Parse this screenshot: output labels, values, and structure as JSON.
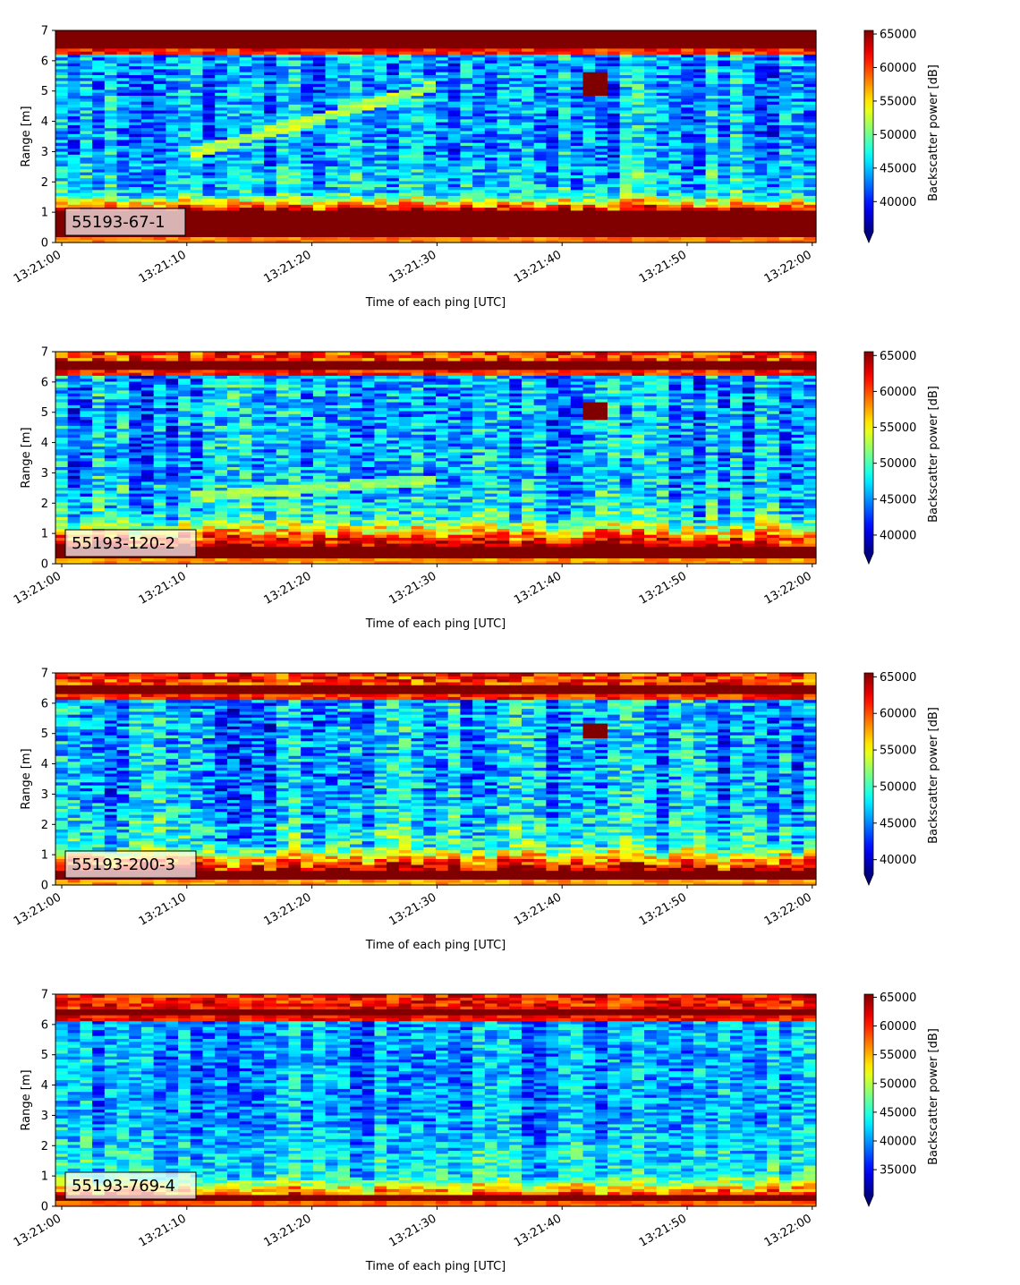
{
  "chart_data": [
    {
      "type": "heatmap",
      "panel_label": "55193-67-1",
      "xlabel": "Time of each ping [UTC]",
      "ylabel": "Range [m]",
      "xticks": [
        "13:21:00",
        "13:21:10",
        "13:21:20",
        "13:21:30",
        "13:21:40",
        "13:21:50",
        "13:22:00"
      ],
      "yticks": [
        "0",
        "1",
        "2",
        "3",
        "4",
        "5",
        "6",
        "7"
      ],
      "xlim_seconds": [
        -0.5,
        60.3
      ],
      "ylim": [
        0,
        7
      ],
      "colorbar_label": "Backscatter power [dB]",
      "colorbar_range": [
        35500,
        65535
      ],
      "colorbar_ticks": [
        "40000",
        "45000",
        "50000",
        "55000",
        "60000",
        "65000"
      ],
      "colormap": "jet",
      "features": {
        "surface_band_m": [
          6.4,
          7.0
        ],
        "near_field_band_m": [
          0.2,
          1.1
        ],
        "near_field_gradient_top_m": 1.6,
        "background_level": 44000,
        "target_track": {
          "t_start": 10,
          "r_start": 2.9,
          "t_end": 30,
          "r_end": 5.2
        },
        "anomaly": {
          "t_start": 41.5,
          "t_end": 44.0,
          "r_low": 4.9,
          "r_high": 5.6
        }
      }
    },
    {
      "type": "heatmap",
      "panel_label": "55193-120-2",
      "xlabel": "Time of each ping [UTC]",
      "ylabel": "Range [m]",
      "xticks": [
        "13:21:00",
        "13:21:10",
        "13:21:20",
        "13:21:30",
        "13:21:40",
        "13:21:50",
        "13:22:00"
      ],
      "yticks": [
        "0",
        "1",
        "2",
        "3",
        "4",
        "5",
        "6",
        "7"
      ],
      "xlim_seconds": [
        -0.5,
        60.3
      ],
      "ylim": [
        0,
        7
      ],
      "colorbar_label": "Backscatter power [dB]",
      "colorbar_range": [
        37500,
        65535
      ],
      "colorbar_ticks": [
        "40000",
        "45000",
        "50000",
        "55000",
        "60000",
        "65000"
      ],
      "colormap": "jet",
      "features": {
        "surface_band_m": [
          6.4,
          6.7
        ],
        "near_field_band_m": [
          0.2,
          0.55
        ],
        "near_field_gradient_top_m": 1.5,
        "background_level": 45500,
        "target_track": {
          "t_start": 10,
          "r_start": 2.2,
          "t_end": 30,
          "r_end": 2.8
        },
        "anomaly": {
          "t_start": 41.5,
          "t_end": 43.5,
          "r_low": 4.8,
          "r_high": 5.3
        }
      }
    },
    {
      "type": "heatmap",
      "panel_label": "55193-200-3",
      "xlabel": "Time of each ping [UTC]",
      "ylabel": "Range [m]",
      "xticks": [
        "13:21:00",
        "13:21:10",
        "13:21:20",
        "13:21:30",
        "13:21:40",
        "13:21:50",
        "13:22:00"
      ],
      "yticks": [
        "0",
        "1",
        "2",
        "3",
        "4",
        "5",
        "6",
        "7"
      ],
      "xlim_seconds": [
        -0.5,
        60.3
      ],
      "ylim": [
        0,
        7
      ],
      "colorbar_label": "Backscatter power [dB]",
      "colorbar_range": [
        38000,
        65535
      ],
      "colorbar_ticks": [
        "40000",
        "45000",
        "50000",
        "55000",
        "60000",
        "65000"
      ],
      "colormap": "jet",
      "features": {
        "surface_band_m": [
          6.35,
          6.65
        ],
        "near_field_band_m": [
          0.2,
          0.45
        ],
        "near_field_gradient_top_m": 1.3,
        "background_level": 45500,
        "target_track": null,
        "anomaly": {
          "t_start": 41.5,
          "t_end": 43.5,
          "r_low": 4.9,
          "r_high": 5.3
        }
      }
    },
    {
      "type": "heatmap",
      "panel_label": "55193-769-4",
      "xlabel": "Time of each ping [UTC]",
      "ylabel": "Range [m]",
      "xticks": [
        "13:21:00",
        "13:21:10",
        "13:21:20",
        "13:21:30",
        "13:21:40",
        "13:21:50",
        "13:22:00"
      ],
      "yticks": [
        "0",
        "1",
        "2",
        "3",
        "4",
        "5",
        "6",
        "7"
      ],
      "xlim_seconds": [
        -0.5,
        60.3
      ],
      "ylim": [
        0,
        7
      ],
      "colorbar_label": "Backscatter power [dB]",
      "colorbar_range": [
        30500,
        65535
      ],
      "colorbar_ticks": [
        "35000",
        "40000",
        "45000",
        "50000",
        "55000",
        "60000",
        "65000"
      ],
      "colormap": "jet",
      "features": {
        "surface_band_m": [
          6.35,
          6.55
        ],
        "near_field_band_m": [
          0.2,
          0.35
        ],
        "near_field_gradient_top_m": 1.0,
        "background_level": 40000,
        "target_track": null,
        "anomaly": null
      }
    }
  ]
}
